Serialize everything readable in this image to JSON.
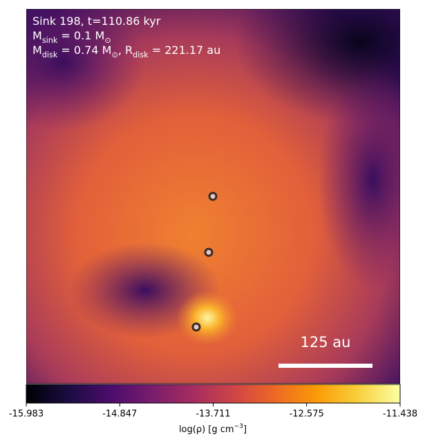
{
  "chart_data": {
    "type": "image",
    "annotations": [
      [
        {
          "t": "Sink 198, t=110.86 kyr"
        }
      ],
      [
        {
          "t": "M"
        },
        {
          "sub": "sink"
        },
        {
          "t": " = 0.1 M"
        },
        {
          "sub": "⊙"
        }
      ],
      [
        {
          "t": "M"
        },
        {
          "sub": "disk"
        },
        {
          "t": " = 0.74 M"
        },
        {
          "sub": "⊙"
        },
        {
          "t": ", R"
        },
        {
          "sub": "disk"
        },
        {
          "t": " = 221.17 au"
        }
      ]
    ],
    "scale_bar": "125 au",
    "colormap": "inferno",
    "colorbar": {
      "label": [
        {
          "t": "log(ρ) [g cm"
        },
        {
          "sup": "−3"
        },
        {
          "t": "]"
        }
      ],
      "clim": [
        -15.983,
        -11.438
      ],
      "ticks": [
        -15.983,
        -14.847,
        -13.711,
        -12.575,
        -11.438
      ]
    }
  }
}
